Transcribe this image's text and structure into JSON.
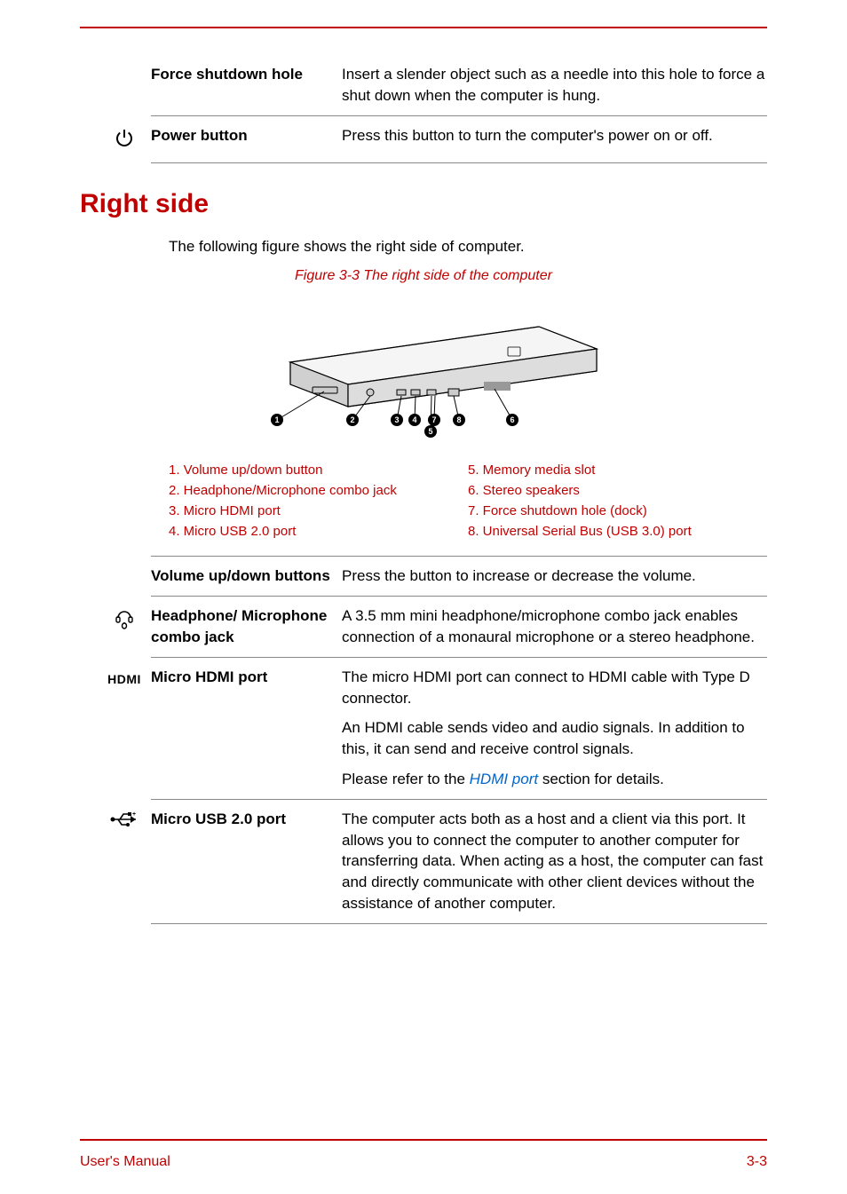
{
  "colors": {
    "accent": "#c00000",
    "text": "#000000",
    "link": "#0066cc",
    "rule": "#888888",
    "background": "#ffffff"
  },
  "top_rows": [
    {
      "icon": null,
      "term": "Force shutdown hole",
      "desc": [
        "Insert a slender object such as a needle into this hole to force a shut down when the computer is hung."
      ]
    },
    {
      "icon": "power-icon",
      "term": "Power button",
      "desc": [
        "Press this button to turn the computer's power on or off."
      ]
    }
  ],
  "section_title": "Right side",
  "intro_text": "The following figure shows the right side of computer.",
  "figure_caption": "Figure 3-3 The right side of the computer",
  "callouts": [
    "1",
    "2",
    "3",
    "4",
    "5",
    "6",
    "7",
    "8"
  ],
  "legend_left": [
    "1. Volume up/down button",
    "2. Headphone/Microphone combo jack",
    "3. Micro HDMI port",
    "4. Micro USB 2.0 port"
  ],
  "legend_right": [
    "5. Memory media slot",
    "6. Stereo speakers",
    "7. Force shutdown hole (dock)",
    "8. Universal Serial Bus (USB 3.0) port"
  ],
  "rows": [
    {
      "icon": null,
      "term": "Volume up/down buttons",
      "desc": [
        "Press the button to increase or decrease the volume."
      ]
    },
    {
      "icon": "headphone-icon",
      "term": "Headphone/ Microphone combo jack",
      "desc": [
        "A 3.5 mm mini headphone/microphone combo jack enables connection of a monaural microphone or a stereo headphone."
      ]
    },
    {
      "icon": "hdmi-icon",
      "term": "Micro HDMI port",
      "desc_html": true,
      "desc": [
        "The micro HDMI port can connect to HDMI cable with Type D connector.",
        "An HDMI cable sends video and audio signals. In addition to this, it can send and receive control signals.",
        {
          "pre": "Please refer to the ",
          "link": "HDMI port",
          "post": " section for details."
        }
      ]
    },
    {
      "icon": "usb-icon",
      "term": "Micro USB 2.0 port",
      "desc": [
        "The computer acts both as a host and a client via this port. It allows you to connect the computer to another computer for transferring data. When acting as a host, the computer can fast and directly communicate with other client devices without the assistance of another computer."
      ]
    }
  ],
  "footer_left": "User's Manual",
  "footer_right": "3-3"
}
